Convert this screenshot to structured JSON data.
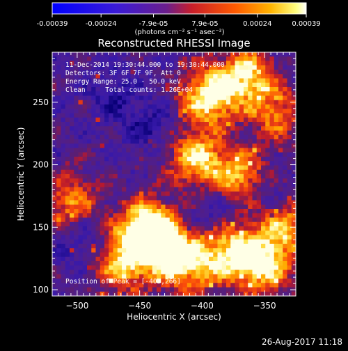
{
  "colorbar": {
    "tick_labels": [
      "-0.00039",
      "-0.00024",
      "-7.9e-05",
      "7.9e-05",
      "0.00024",
      "0.00039"
    ],
    "tick_values": [
      -0.00039,
      -0.00024,
      -7.9e-05,
      7.9e-05,
      0.00024,
      0.00039
    ],
    "range": [
      -0.00039,
      0.00039
    ],
    "unit_label": "(photons cm⁻² s⁻¹ asec⁻²)"
  },
  "chart_data": {
    "type": "heatmap",
    "title": "Reconstructed RHESSI Image",
    "xlabel": "Heliocentric X (arcsec)",
    "ylabel": "Heliocentric Y (arcsec)",
    "xlim": [
      -520,
      -325
    ],
    "ylim": [
      95,
      290
    ],
    "x_ticks": [
      -500,
      -450,
      -400,
      -350
    ],
    "x_tick_labels": [
      "−500",
      "−450",
      "−400",
      "−350"
    ],
    "y_ticks": [
      100,
      150,
      200,
      250
    ],
    "y_tick_labels": [
      "100",
      "150",
      "200",
      "250"
    ],
    "annotations": [
      "11-Dec-2014 19:30:44.000 to 19:30:44.000",
      "Detectors: 3F 6F 7F 9F, Att 0",
      "Energy Range: 25.0 - 50.0 keV",
      "Clean     Total counts: 1.26E+04"
    ],
    "peak_label": "Position of Peak = [-403,266]",
    "colormap": "blue-purple-red-yellow-white",
    "bright_regions": [
      {
        "x": -395,
        "y": 255,
        "level": 0.95
      },
      {
        "x": -365,
        "y": 270,
        "level": 0.85
      },
      {
        "x": -405,
        "y": 205,
        "level": 0.8
      },
      {
        "x": -370,
        "y": 190,
        "level": 0.75
      },
      {
        "x": -445,
        "y": 150,
        "level": 0.9
      },
      {
        "x": -435,
        "y": 135,
        "level": 0.85
      },
      {
        "x": -465,
        "y": 120,
        "level": 0.7
      },
      {
        "x": -375,
        "y": 130,
        "level": 0.85
      },
      {
        "x": -410,
        "y": 120,
        "level": 0.8
      },
      {
        "x": -350,
        "y": 118,
        "level": 0.75
      },
      {
        "x": -335,
        "y": 150,
        "level": 0.7
      },
      {
        "x": -505,
        "y": 170,
        "level": 0.6
      },
      {
        "x": -340,
        "y": 240,
        "level": 0.55
      }
    ],
    "dark_regions": [
      {
        "x": -495,
        "y": 140
      },
      {
        "x": -470,
        "y": 255
      },
      {
        "x": -440,
        "y": 230
      },
      {
        "x": -390,
        "y": 165
      },
      {
        "x": -350,
        "y": 175
      }
    ]
  },
  "footer": {
    "timestamp": "26-Aug-2017 11:18"
  }
}
